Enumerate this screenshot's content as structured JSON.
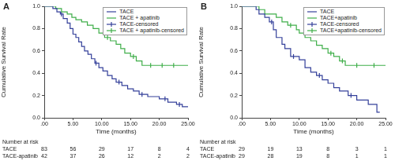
{
  "chart_data": [
    {
      "title": "A",
      "type": "line",
      "x_label": "Time (months)",
      "y_label": "Cumulative Survival Rate",
      "xlim": [
        0,
        25
      ],
      "xticks": [
        {
          "value": 0,
          "label": ".00"
        },
        {
          "value": 5,
          "label": "5.00"
        },
        {
          "value": 10,
          "label": "10.00"
        },
        {
          "value": 15,
          "label": "15.00"
        },
        {
          "value": 20,
          "label": "20.00"
        },
        {
          "value": 25,
          "label": "25.00"
        }
      ],
      "ylim": [
        0,
        1
      ],
      "yticks": [
        {
          "value": 0,
          "label": "0.0"
        },
        {
          "value": 0.2,
          "label": "0.2"
        },
        {
          "value": 0.4,
          "label": "0.4"
        },
        {
          "value": 0.6,
          "label": "0.6"
        },
        {
          "value": 0.8,
          "label": "0.8"
        },
        {
          "value": 1,
          "label": "1.0"
        }
      ],
      "grid": false,
      "legend": "upper right",
      "series": [
        {
          "name": "TACE",
          "color": "#34409a",
          "type": "line",
          "line_style": "step",
          "x": [
            0,
            1.5,
            2.2,
            2.8,
            3.3,
            4,
            4.5,
            5,
            5.5,
            6,
            6.5,
            7,
            7.6,
            8.2,
            8.8,
            9.5,
            10.2,
            11,
            11.8,
            12.5,
            13.5,
            14.5,
            15.5,
            16.5,
            18,
            20,
            21.5,
            23,
            24,
            25
          ],
          "values": [
            1,
            0.98,
            0.95,
            0.93,
            0.89,
            0.85,
            0.8,
            0.75,
            0.72,
            0.68,
            0.64,
            0.6,
            0.57,
            0.53,
            0.49,
            0.45,
            0.42,
            0.38,
            0.35,
            0.32,
            0.29,
            0.26,
            0.24,
            0.21,
            0.19,
            0.17,
            0.14,
            0.12,
            0.1,
            0.1
          ]
        },
        {
          "name": "TACE + apatinib",
          "color": "#3fae49",
          "type": "line",
          "line_style": "step",
          "x": [
            0,
            2,
            3,
            4,
            4.8,
            5.5,
            6.5,
            7.5,
            8.5,
            9.5,
            10.5,
            11.5,
            12.5,
            13.3,
            14,
            15,
            16,
            17,
            25
          ],
          "values": [
            1,
            0.98,
            0.95,
            0.93,
            0.9,
            0.88,
            0.86,
            0.83,
            0.8,
            0.76,
            0.72,
            0.69,
            0.66,
            0.62,
            0.58,
            0.55,
            0.51,
            0.47,
            0.47
          ]
        },
        {
          "name": "TACE-censored",
          "color": "#34409a",
          "type": "scatter",
          "marker": "tick",
          "x": [
            3,
            9,
            13,
            17,
            21,
            23.5
          ],
          "values": [
            0.93,
            0.49,
            0.32,
            0.21,
            0.17,
            0.12
          ]
        },
        {
          "name": "TACE + apatinib-censored",
          "color": "#3fae49",
          "type": "scatter",
          "marker": "tick",
          "x": [
            11,
            15.5,
            18.5,
            20.5,
            22.5
          ],
          "values": [
            0.72,
            0.55,
            0.47,
            0.47,
            0.47
          ]
        }
      ],
      "number_at_risk": {
        "title": "Number at risk",
        "x": [
          0,
          5,
          10,
          15,
          20,
          25
        ],
        "rows": [
          {
            "name": "TACE",
            "values": [
              83,
              56,
              29,
              17,
              8,
              4
            ]
          },
          {
            "name": "TACE-apatinib",
            "values": [
              42,
              37,
              26,
              12,
              2,
              2
            ]
          }
        ]
      }
    },
    {
      "title": "B",
      "type": "line",
      "x_label": "Time (months)",
      "y_label": "Cumulative Survival Rate",
      "xlim": [
        0,
        25
      ],
      "xticks": [
        {
          "value": 0,
          "label": ".00"
        },
        {
          "value": 5,
          "label": "5.00"
        },
        {
          "value": 10,
          "label": "10.00"
        },
        {
          "value": 15,
          "label": "15.00"
        },
        {
          "value": 20,
          "label": "20.00"
        },
        {
          "value": 25,
          "label": "25.00"
        }
      ],
      "ylim": [
        0,
        1
      ],
      "yticks": [
        {
          "value": 0,
          "label": "0.0"
        },
        {
          "value": 0.2,
          "label": "0.2"
        },
        {
          "value": 0.4,
          "label": "0.4"
        },
        {
          "value": 0.6,
          "label": "0.6"
        },
        {
          "value": 0.8,
          "label": "0.8"
        },
        {
          "value": 1,
          "label": "1.0"
        }
      ],
      "grid": false,
      "legend": "upper right",
      "series": [
        {
          "name": "TACE",
          "color": "#34409a",
          "type": "line",
          "line_style": "step",
          "x": [
            0,
            2.5,
            3,
            4,
            4.8,
            5.5,
            6,
            7,
            7.5,
            8.5,
            10,
            11,
            12,
            13,
            14,
            15,
            16,
            17,
            18.5,
            20,
            22,
            23.5,
            24
          ],
          "values": [
            1,
            0.97,
            0.93,
            0.9,
            0.86,
            0.79,
            0.72,
            0.66,
            0.62,
            0.55,
            0.52,
            0.45,
            0.41,
            0.38,
            0.34,
            0.31,
            0.27,
            0.24,
            0.2,
            0.16,
            0.12,
            0.05,
            0.05
          ]
        },
        {
          "name": "TACE+apatinib",
          "color": "#3fae49",
          "type": "line",
          "line_style": "step",
          "x": [
            0,
            3,
            4,
            6,
            7,
            8,
            9.5,
            10,
            11,
            12,
            13,
            14,
            15,
            16,
            17,
            18,
            25
          ],
          "values": [
            1,
            0.97,
            0.93,
            0.9,
            0.86,
            0.83,
            0.79,
            0.76,
            0.72,
            0.69,
            0.65,
            0.62,
            0.58,
            0.55,
            0.51,
            0.47,
            0.47
          ]
        },
        {
          "name": "TACE-censored",
          "color": "#34409a",
          "type": "scatter",
          "marker": "tick",
          "x": [
            5.2,
            9,
            13.5,
            19
          ],
          "values": [
            0.86,
            0.55,
            0.38,
            0.2
          ]
        },
        {
          "name": "TACE+apatinib-censored",
          "color": "#3fae49",
          "type": "scatter",
          "marker": "tick",
          "x": [
            8.5,
            15.5,
            17.5,
            20,
            23
          ],
          "values": [
            0.83,
            0.58,
            0.51,
            0.47,
            0.47
          ]
        }
      ],
      "number_at_risk": {
        "title": "Number at risk",
        "x": [
          0,
          5,
          10,
          15,
          20,
          25
        ],
        "rows": [
          {
            "name": "TACE",
            "values": [
              29,
              19,
              13,
              8,
              3,
              1
            ]
          },
          {
            "name": "TACE-apatinib",
            "values": [
              29,
              28,
              19,
              8,
              1,
              1
            ]
          }
        ]
      }
    }
  ]
}
